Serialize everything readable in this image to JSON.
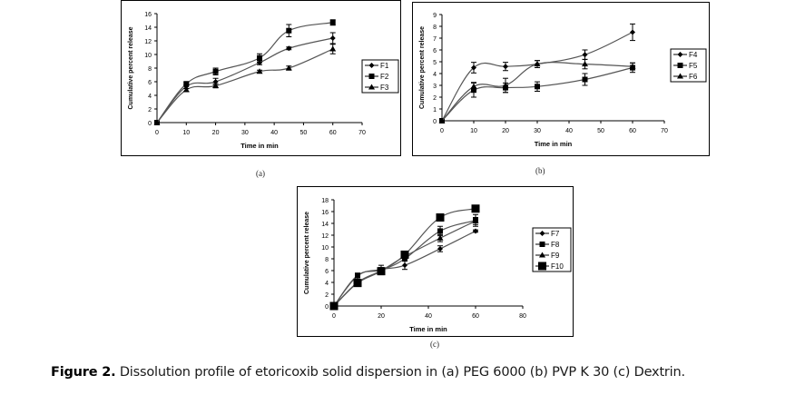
{
  "caption": {
    "label": "Figure 2.",
    "text": " Dissolution profile of etoricoxib solid dispersion in (a) PEG 6000 (b) PVP K 30 (c) Dextrin."
  },
  "chart_data": [
    {
      "id": "a",
      "type": "line",
      "panel_label": "(a)",
      "title": "",
      "xlabel": "Time in min",
      "ylabel": "Cumulative percent release",
      "xlim": [
        0,
        70
      ],
      "ylim": [
        0,
        16
      ],
      "xticks": [
        "0",
        "10",
        "20",
        "30",
        "40",
        "50",
        "60",
        "70"
      ],
      "yticks": [
        "0",
        "2",
        "4",
        "6",
        "8",
        "10",
        "12",
        "14",
        "16"
      ],
      "grid": false,
      "legend_position": "right",
      "x": [
        0,
        10,
        20,
        35,
        45,
        60
      ],
      "series": [
        {
          "name": "F1",
          "marker": "diamond",
          "values": [
            0,
            5.3,
            6.0,
            8.8,
            10.9,
            12.4
          ],
          "errors": [
            0,
            0.3,
            0.5,
            0.3,
            0.2,
            0.8
          ]
        },
        {
          "name": "F2",
          "marker": "square",
          "values": [
            0,
            5.7,
            7.5,
            9.5,
            13.5,
            14.7
          ],
          "errors": [
            0,
            0.2,
            0.5,
            0.6,
            0.9,
            0.4
          ]
        },
        {
          "name": "F3",
          "marker": "triangle",
          "values": [
            0,
            4.8,
            5.4,
            7.5,
            8.0,
            10.8
          ],
          "errors": [
            0,
            0.2,
            0.3,
            0.2,
            0.3,
            0.7
          ]
        }
      ]
    },
    {
      "id": "b",
      "type": "line",
      "panel_label": "(b)",
      "title": "",
      "xlabel": "Time in min",
      "ylabel": "Cumulative percent release",
      "xlim": [
        0,
        70
      ],
      "ylim": [
        0,
        9
      ],
      "xticks": [
        "0",
        "10",
        "20",
        "30",
        "40",
        "50",
        "60",
        "70"
      ],
      "yticks": [
        "0",
        "1",
        "2",
        "3",
        "4",
        "5",
        "6",
        "7",
        "8",
        "9"
      ],
      "grid": false,
      "legend_position": "right",
      "x": [
        0,
        10,
        20,
        30,
        45,
        60
      ],
      "series": [
        {
          "name": "F4",
          "marker": "diamond",
          "values": [
            0,
            4.5,
            4.6,
            4.8,
            5.6,
            7.5
          ],
          "errors": [
            0,
            0.45,
            0.35,
            0.3,
            0.4,
            0.7
          ]
        },
        {
          "name": "F5",
          "marker": "square",
          "values": [
            0,
            2.6,
            2.8,
            2.9,
            3.5,
            4.5
          ],
          "errors": [
            0,
            0.6,
            0.4,
            0.4,
            0.5,
            0.4
          ]
        },
        {
          "name": "F6",
          "marker": "triangle",
          "values": [
            0,
            2.9,
            3.0,
            4.8,
            4.8,
            4.6
          ],
          "errors": [
            0,
            0.35,
            0.6,
            0.3,
            0.4,
            0.3
          ]
        }
      ]
    },
    {
      "id": "c",
      "type": "line",
      "panel_label": "(c)",
      "title": "",
      "xlabel": "Time in min",
      "ylabel": "Cumulative percent release",
      "xlim": [
        0,
        80
      ],
      "ylim": [
        0,
        18
      ],
      "xticks": [
        "0",
        "20",
        "40",
        "60",
        "80"
      ],
      "yticks": [
        "0",
        "2",
        "4",
        "6",
        "8",
        "10",
        "12",
        "14",
        "16",
        "18"
      ],
      "grid": false,
      "legend_position": "right",
      "x": [
        0,
        10,
        20,
        30,
        45,
        60
      ],
      "series": [
        {
          "name": "F7",
          "marker": "diamond",
          "values": [
            0,
            5.1,
            6.2,
            6.9,
            9.7,
            12.7
          ],
          "errors": [
            0,
            0.2,
            0.3,
            0.7,
            0.5,
            0.2
          ]
        },
        {
          "name": "F8",
          "marker": "square",
          "values": [
            0,
            5.2,
            6.1,
            8.0,
            12.7,
            14.5
          ],
          "errors": [
            0,
            0.2,
            0.8,
            0.3,
            0.8,
            1.0
          ]
        },
        {
          "name": "F9",
          "marker": "triangle",
          "values": [
            0,
            4.0,
            6.0,
            8.4,
            11.5,
            14.4
          ],
          "errors": [
            0,
            0.6,
            0.3,
            0.3,
            0.6,
            0.6
          ]
        },
        {
          "name": "F10",
          "marker": "bigsquare",
          "values": [
            0,
            3.9,
            5.9,
            8.7,
            15.0,
            16.5
          ],
          "errors": [
            0,
            0.3,
            0.3,
            0.3,
            0.3,
            0.2
          ]
        }
      ]
    }
  ]
}
